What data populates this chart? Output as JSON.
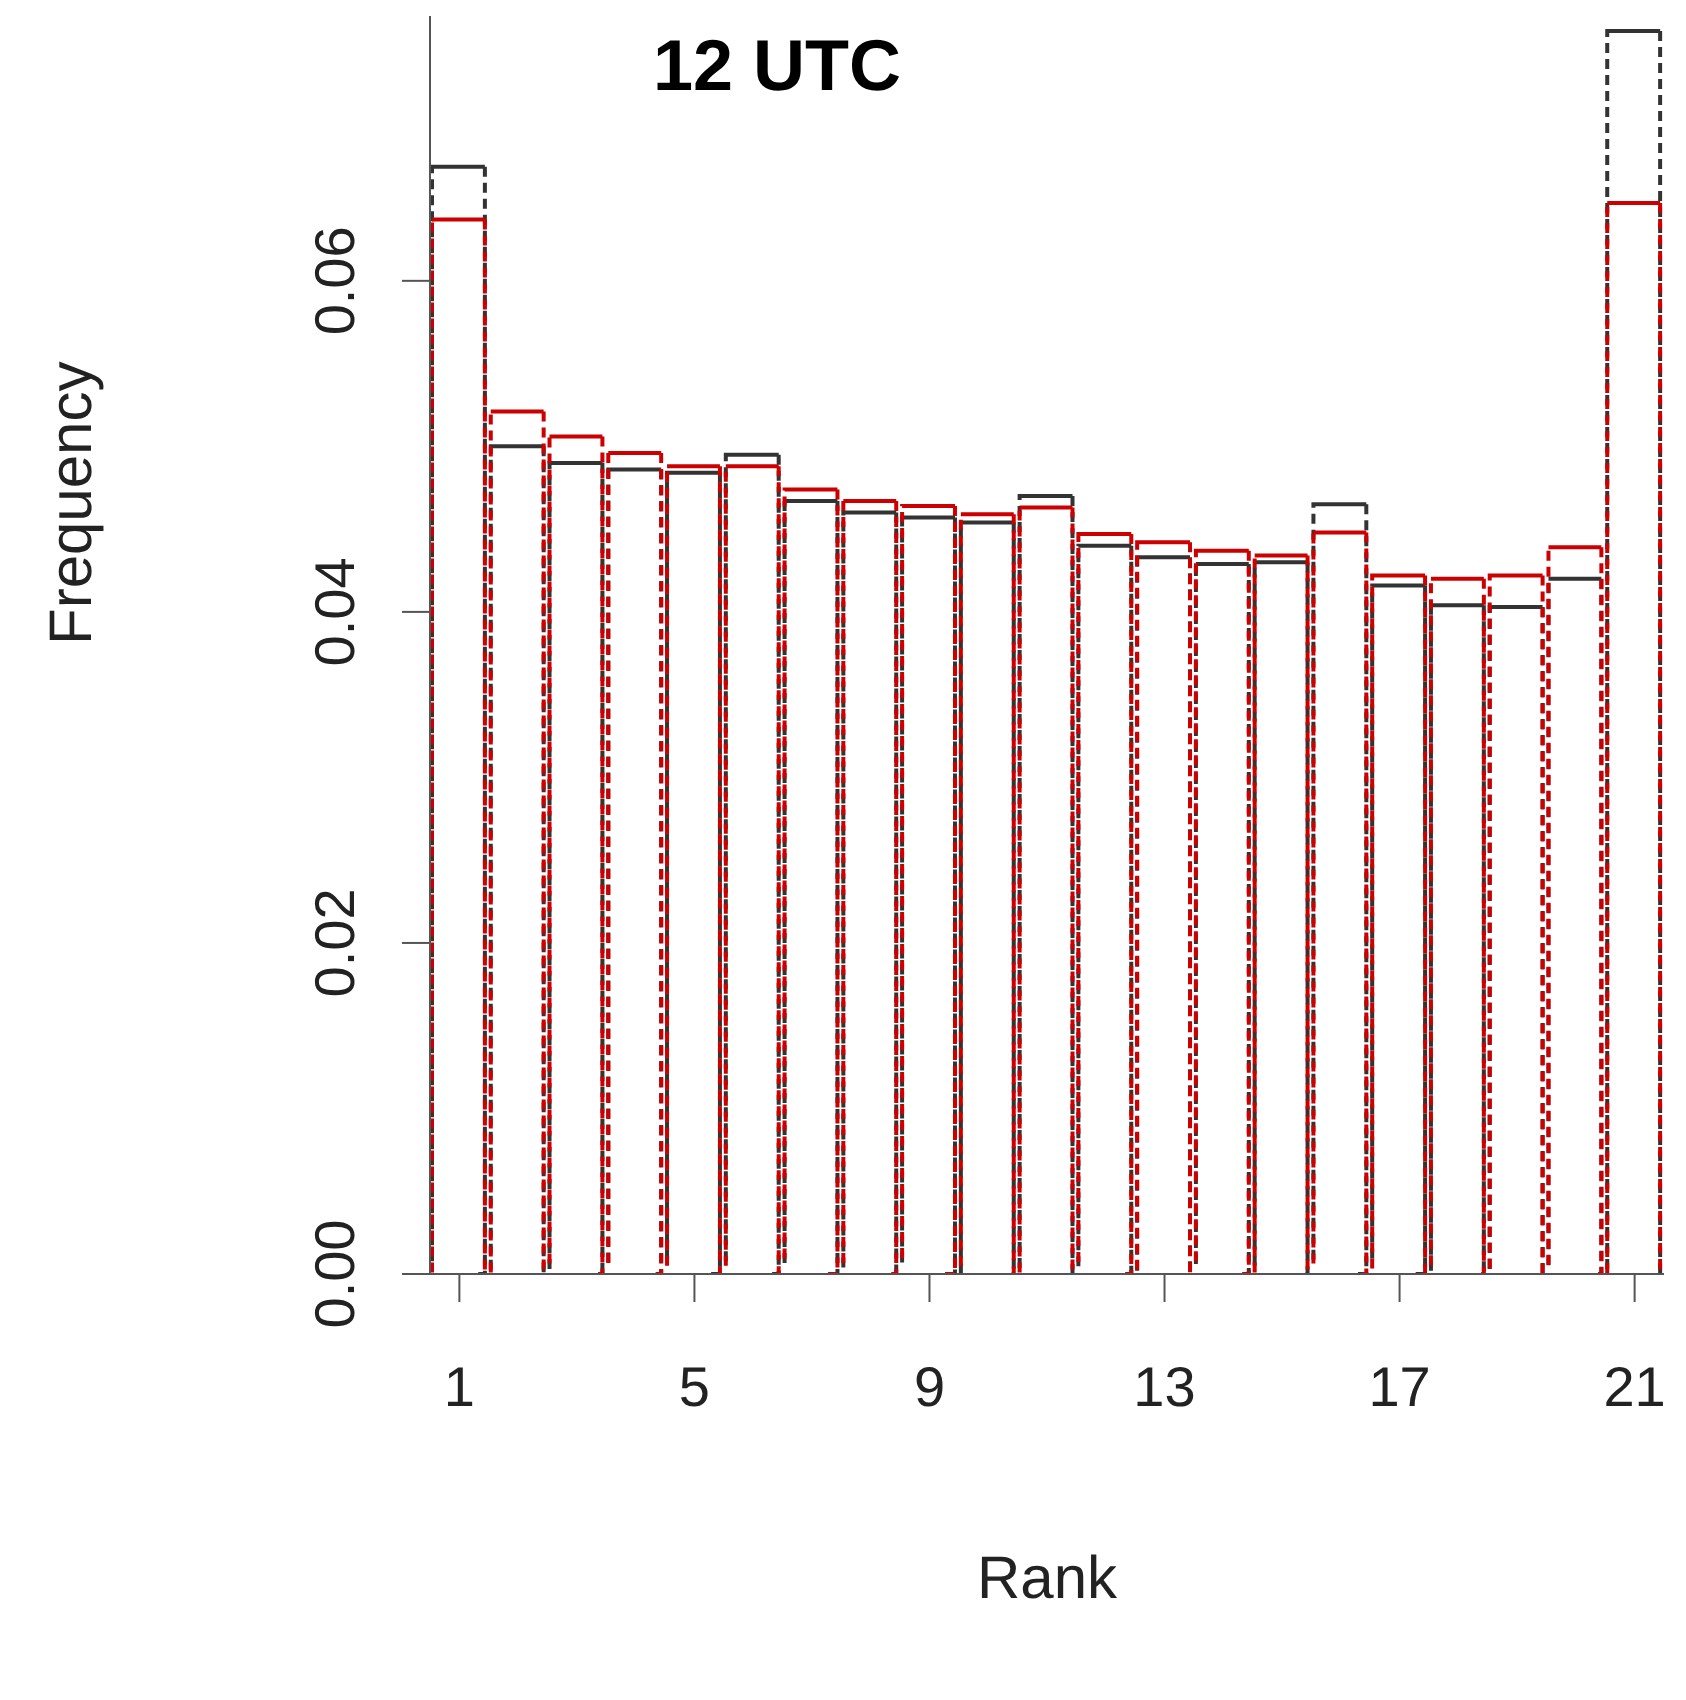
{
  "chart_data": {
    "type": "bar",
    "title": "12 UTC",
    "xlabel": "Rank",
    "ylabel": "Frequency",
    "x": [
      1,
      2,
      3,
      4,
      5,
      6,
      7,
      8,
      9,
      10,
      11,
      12,
      13,
      14,
      15,
      16,
      17,
      18,
      19,
      20,
      21
    ],
    "series": [
      {
        "color": "#333333",
        "values": [
          0.0669,
          0.05,
          0.049,
          0.0486,
          0.0484,
          0.0495,
          0.0467,
          0.046,
          0.0457,
          0.0454,
          0.047,
          0.044,
          0.0433,
          0.0429,
          0.043,
          0.0465,
          0.0416,
          0.0404,
          0.0403,
          0.042,
          0.0751
        ]
      },
      {
        "color": "#cc0000",
        "values": [
          0.0637,
          0.0521,
          0.0506,
          0.0496,
          0.0488,
          0.0488,
          0.0474,
          0.0467,
          0.0464,
          0.0459,
          0.0463,
          0.0447,
          0.0442,
          0.0437,
          0.0434,
          0.0448,
          0.0422,
          0.042,
          0.0422,
          0.0439,
          0.0647
        ]
      }
    ],
    "xlim": [
      0.5,
      21.5
    ],
    "xticks": [
      1,
      5,
      9,
      13,
      17,
      21
    ],
    "ylim": [
      0,
      0.076
    ],
    "yticks": [
      {
        "value": 0,
        "label": "0.00"
      },
      0.02,
      0.04,
      0.06
    ],
    "line_style": "dashed"
  }
}
